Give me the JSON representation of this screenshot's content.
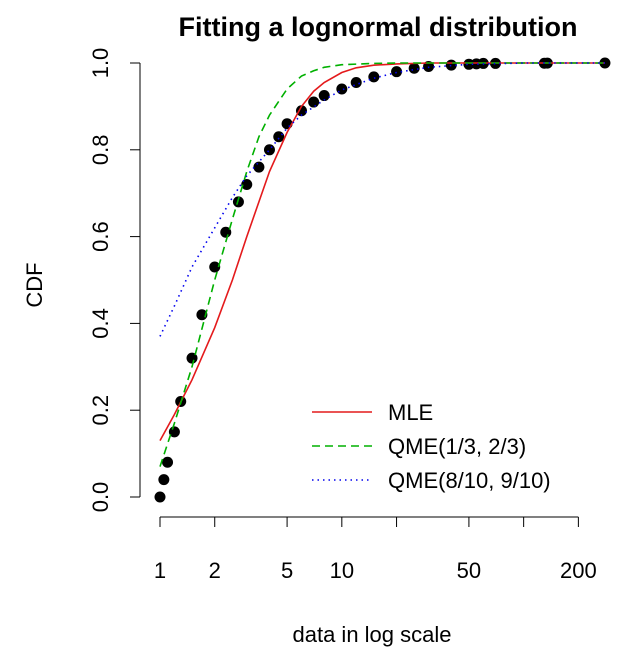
{
  "chart_data": {
    "type": "line",
    "title": "Fitting a lognormal distribution",
    "xlabel": "data in log scale",
    "ylabel": "CDF",
    "x_scale": "log",
    "xlim": [
      1,
      250
    ],
    "ylim": [
      0,
      1
    ],
    "x_ticks": [
      1,
      2,
      5,
      10,
      20,
      50,
      100,
      200
    ],
    "x_tick_labels": [
      "1",
      "2",
      "5",
      "10",
      "",
      "50",
      "",
      "200"
    ],
    "y_ticks": [
      0.0,
      0.2,
      0.4,
      0.6,
      0.8,
      1.0
    ],
    "y_tick_labels": [
      "0.0",
      "0.2",
      "0.4",
      "0.6",
      "0.8",
      "1.0"
    ],
    "grid": false,
    "legend_position": "bottom-right",
    "empirical": {
      "marker": "filled-circle",
      "color": "#000000",
      "x": [
        1.0,
        1.05,
        1.1,
        1.2,
        1.3,
        1.5,
        1.7,
        2.0,
        2.3,
        2.7,
        3.0,
        3.5,
        4.0,
        4.5,
        5.0,
        6.0,
        7.0,
        8.0,
        10.0,
        12.0,
        15.0,
        20.0,
        25.0,
        30.0,
        40.0,
        50.0,
        55.0,
        60.0,
        70.0,
        130.0,
        135.0,
        280.0
      ],
      "y": [
        0.0,
        0.04,
        0.08,
        0.15,
        0.22,
        0.32,
        0.42,
        0.53,
        0.61,
        0.68,
        0.72,
        0.76,
        0.8,
        0.83,
        0.86,
        0.89,
        0.91,
        0.925,
        0.94,
        0.955,
        0.968,
        0.98,
        0.988,
        0.992,
        0.995,
        0.997,
        0.998,
        0.999,
        0.999,
        0.9995,
        0.9997,
        1.0
      ]
    },
    "series": [
      {
        "name": "MLE",
        "color": "#e41a1c",
        "dash": "solid",
        "x": [
          1.0,
          1.2,
          1.5,
          2.0,
          2.5,
          3.0,
          3.5,
          4.0,
          5.0,
          6.0,
          7.0,
          8.0,
          10.0,
          12.0,
          15.0,
          20.0,
          30.0,
          50.0,
          100.0,
          280.0
        ],
        "y": [
          0.13,
          0.19,
          0.27,
          0.39,
          0.5,
          0.6,
          0.68,
          0.75,
          0.84,
          0.9,
          0.935,
          0.955,
          0.978,
          0.989,
          0.995,
          0.998,
          1.0,
          1.0,
          1.0,
          1.0
        ]
      },
      {
        "name": "QME(1/3, 2/3)",
        "color": "#00b000",
        "dash": "dashed",
        "x": [
          1.0,
          1.2,
          1.5,
          2.0,
          2.5,
          3.0,
          3.5,
          4.0,
          5.0,
          6.0,
          7.0,
          8.0,
          10.0,
          15.0,
          20.0,
          50.0,
          280.0
        ],
        "y": [
          0.07,
          0.17,
          0.3,
          0.5,
          0.64,
          0.75,
          0.83,
          0.88,
          0.94,
          0.97,
          0.982,
          0.99,
          0.996,
          0.999,
          1.0,
          1.0,
          1.0
        ]
      },
      {
        "name": "QME(8/10, 9/10)",
        "color": "#0000ee",
        "dash": "dotted",
        "x": [
          1.0,
          1.2,
          1.5,
          2.0,
          2.5,
          3.0,
          4.0,
          5.0,
          6.0,
          8.0,
          10.0,
          15.0,
          20.0,
          30.0,
          50.0,
          100.0,
          280.0
        ],
        "y": [
          0.37,
          0.44,
          0.53,
          0.62,
          0.69,
          0.74,
          0.8,
          0.85,
          0.88,
          0.915,
          0.938,
          0.965,
          0.978,
          0.99,
          0.997,
          1.0,
          1.0
        ]
      }
    ]
  }
}
